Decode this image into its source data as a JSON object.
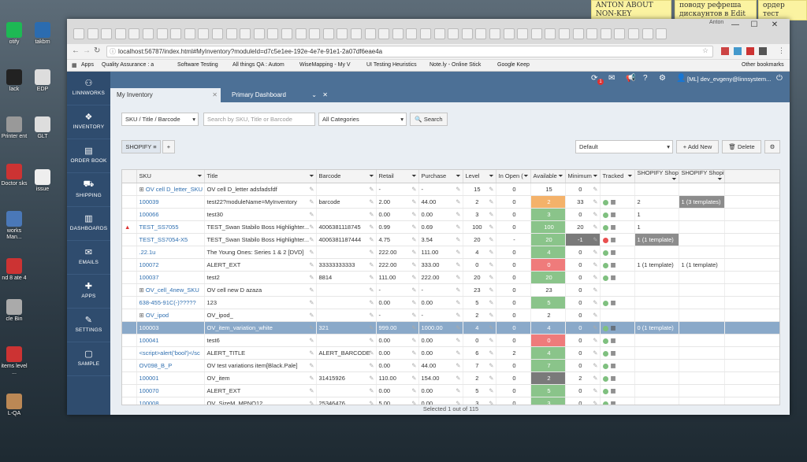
{
  "desktop": {
    "icons": [
      {
        "label": "otify"
      },
      {
        "label": "takbm"
      },
      {
        "label": "lack"
      },
      {
        "label": "EDP"
      },
      {
        "label": "Printer ent"
      },
      {
        "label": "GLT"
      },
      {
        "label": "Doctor sks"
      },
      {
        "label": "issue"
      },
      {
        "label": "works Man..."
      },
      {
        "label": "nd 8 ate 4"
      },
      {
        "label": "cle Bin"
      },
      {
        "label": "items level ..."
      },
      {
        "label": "L-QA"
      }
    ],
    "notes": [
      "ANTON ABOUT NON-KEY",
      "поводу рефреша дискаунтов в Edit",
      "ордер тест релиз тесты"
    ]
  },
  "window": {
    "title_fragment": "Anton"
  },
  "browser": {
    "url": "localhost:56787/index.html#MyInventory?moduleId=d7c5e1ee-192e-4e7e-91e1-2a07df6eae4a",
    "bookmarks": [
      "Apps",
      "Quality Assurance : a",
      "Software Testing",
      "All things QA : Autom",
      "WiseMapping - My V",
      "UI Testing Heuristics",
      "Note.ly - Online Stick",
      "Google Keep",
      "Other bookmarks"
    ]
  },
  "sidebar": {
    "items": [
      {
        "label": "LINNWORKS",
        "icon": "linnworks-icon"
      },
      {
        "label": "INVENTORY",
        "icon": "inventory-icon"
      },
      {
        "label": "ORDER BOOK",
        "icon": "book-icon"
      },
      {
        "label": "SHIPPING",
        "icon": "truck-icon"
      },
      {
        "label": "DASHBOARDS",
        "icon": "chart-icon"
      },
      {
        "label": "EMAILS",
        "icon": "envelope-icon"
      },
      {
        "label": "APPS",
        "icon": "puzzle-icon"
      },
      {
        "label": "SETTINGS",
        "icon": "wrench-icon"
      },
      {
        "label": "SAMPLE",
        "icon": "square-icon"
      }
    ]
  },
  "topbar": {
    "user": "[ML] dev_evgeny@linnsystem...",
    "badge": "1"
  },
  "tabs": [
    {
      "label": "My Inventory",
      "active": true
    },
    {
      "label": "Primary Dashboard",
      "active": false
    }
  ],
  "filters": {
    "search_type": "SKU / Title / Barcode",
    "search_placeholder": "Search by SKU, Title or Barcode",
    "category": "All Categories",
    "search_button": "Search",
    "view_tab": "SHOPIFY",
    "add_tab": "+",
    "view_select": "Default",
    "add_new": "Add New",
    "delete": "Delete"
  },
  "columns": [
    "SKU",
    "Title",
    "Barcode",
    "Retail",
    "Purchase",
    "Level",
    "In Open (",
    "Available",
    "Minimum",
    "Tracked",
    "SHOPIFY ShopifyLinnSyst",
    "SHOPIFY ShopifyNext"
  ],
  "rows": [
    {
      "sku": "OV cell D_letter_SKU",
      "expand": true,
      "title": "OV cell D_letter adsfadsfdf",
      "barcode": "",
      "retail": "-",
      "purchase": "-",
      "level": "15",
      "open": "0",
      "avail": "15",
      "avail_c": "white",
      "min": "0",
      "dot": "",
      "s1": "",
      "s2": ""
    },
    {
      "sku": "100039",
      "title": "test22?moduleName=MyInventory",
      "barcode": "barcode",
      "retail": "2.00",
      "purchase": "44.00",
      "level": "2",
      "open": "0",
      "avail": "2",
      "avail_c": "orange",
      "min": "33",
      "dot": "g",
      "s1": "2",
      "s2": "1 (3 templates)"
    },
    {
      "sku": "100066",
      "title": "test30",
      "barcode": "",
      "retail": "0.00",
      "purchase": "0.00",
      "level": "3",
      "open": "0",
      "avail": "3",
      "avail_c": "green",
      "min": "0",
      "dot": "g",
      "s1": "1",
      "s2": ""
    },
    {
      "sku": "TEST_SS7055",
      "warn": true,
      "title": "TEST_Swan Stabilo Boss Highlighter...",
      "barcode": "4006381118745",
      "retail": "0.99",
      "purchase": "0.69",
      "level": "100",
      "open": "0",
      "avail": "100",
      "avail_c": "green",
      "min": "20",
      "dot": "g",
      "s1": "1",
      "s2": ""
    },
    {
      "sku": "TEST_SS7054-X5",
      "title": "TEST_Swan Stabilo Boss Highlighter...",
      "barcode": "4006381187444",
      "retail": "4.75",
      "purchase": "3.54",
      "level": "20",
      "open": "-",
      "avail": "20",
      "avail_c": "green",
      "min": "-1",
      "min_grey": true,
      "dot": "r",
      "s1": "1 (1 template)",
      "s1_grey": true,
      "s2": ""
    },
    {
      "sku": ".22.1u",
      "title": "The Young Ones: Series 1 & 2 [DVD]",
      "barcode": "",
      "retail": "222.00",
      "purchase": "111.00",
      "level": "4",
      "open": "0",
      "avail": "4",
      "avail_c": "green",
      "min": "0",
      "dot": "g",
      "s1": "",
      "s2": ""
    },
    {
      "sku": "100072",
      "title": "ALERT_EXT",
      "barcode": "33333333333",
      "retail": "222.00",
      "purchase": "333.00",
      "level": "0",
      "open": "0",
      "avail": "0",
      "avail_c": "red",
      "min": "0",
      "dot": "g",
      "s1": "1 (1 template)",
      "s2": "1 (1 template)"
    },
    {
      "sku": "100037",
      "title": "test2",
      "barcode": "8814",
      "retail": "111.00",
      "purchase": "222.00",
      "level": "20",
      "open": "0",
      "avail": "20",
      "avail_c": "green",
      "min": "0",
      "dot": "g",
      "s1": "",
      "s2": ""
    },
    {
      "sku": "OV_cell_4new_SKU",
      "expand": true,
      "title": "OV cell new D azaza",
      "barcode": "",
      "retail": "-",
      "purchase": "-",
      "level": "23",
      "open": "0",
      "avail": "23",
      "avail_c": "white",
      "min": "0",
      "dot": "",
      "s1": "",
      "s2": ""
    },
    {
      "sku": "638-455-91C(-)?????",
      "title": "123",
      "barcode": "",
      "retail": "0.00",
      "purchase": "0.00",
      "level": "5",
      "open": "0",
      "avail": "5",
      "avail_c": "green",
      "min": "0",
      "dot": "g",
      "s1": "",
      "s2": ""
    },
    {
      "sku": "OV_ipod",
      "expand": true,
      "title": "OV_ipod_",
      "barcode": "",
      "retail": "-",
      "purchase": "-",
      "level": "2",
      "open": "0",
      "avail": "2",
      "avail_c": "white",
      "min": "0",
      "dot": "",
      "s1": "",
      "s2": ""
    },
    {
      "sku": "100003",
      "selected": true,
      "title": "OV_item_variation_white",
      "barcode": "321",
      "retail": "999.00",
      "purchase": "1000.00",
      "level": "4",
      "open": "0",
      "avail": "4",
      "avail_c": "green",
      "min": "0",
      "dot": "g",
      "s1": "0 (1 template)",
      "s2": ""
    },
    {
      "sku": "100041",
      "title": "test6",
      "barcode": "",
      "retail": "0.00",
      "purchase": "0.00",
      "level": "0",
      "open": "0",
      "avail": "0",
      "avail_c": "red",
      "min": "0",
      "dot": "g",
      "s1": "",
      "s2": ""
    },
    {
      "sku": "<script>alert('bool')</sc",
      "title": "ALERT_TITLE",
      "barcode": "ALERT_BARCODE",
      "retail": "0.00",
      "purchase": "0.00",
      "level": "6",
      "open": "2",
      "avail": "4",
      "avail_c": "green",
      "min": "0",
      "dot": "g",
      "s1": "",
      "s2": ""
    },
    {
      "sku": "OV098_B_P",
      "title": "OV test variations item[Black.Pale]",
      "barcode": "",
      "retail": "0.00",
      "purchase": "44.00",
      "level": "7",
      "open": "0",
      "avail": "7",
      "avail_c": "green",
      "min": "0",
      "dot": "g",
      "s1": "",
      "s2": ""
    },
    {
      "sku": "100001",
      "title": "OV_item",
      "barcode": "31415926",
      "retail": "110.00",
      "purchase": "154.00",
      "level": "2",
      "open": "0",
      "avail": "2",
      "avail_c": "grey",
      "min": "2",
      "dot": "g",
      "s1": "",
      "s2": ""
    },
    {
      "sku": "100070",
      "title": "ALERT_EXT",
      "barcode": "",
      "retail": "0.00",
      "purchase": "0.00",
      "level": "5",
      "open": "0",
      "avail": "5",
      "avail_c": "green",
      "min": "0",
      "dot": "g",
      "s1": "",
      "s2": ""
    },
    {
      "sku": "100008",
      "title": "OV_SizeM_MPNQ12",
      "barcode": "25346476",
      "retail": "5.00",
      "purchase": "0.00",
      "level": "3",
      "open": "0",
      "avail": "3",
      "avail_c": "green",
      "min": "0",
      "dot": "g",
      "s1": "",
      "s2": ""
    }
  ],
  "footer": "Selected 1 out of 115",
  "colors": {
    "sidebar": "#2f4c6e",
    "topbar": "#4c7096",
    "available_green": "#8ac48a",
    "available_red": "#ef7b7b",
    "available_orange": "#f4b26a",
    "selected_row": "#8aa9c9"
  }
}
